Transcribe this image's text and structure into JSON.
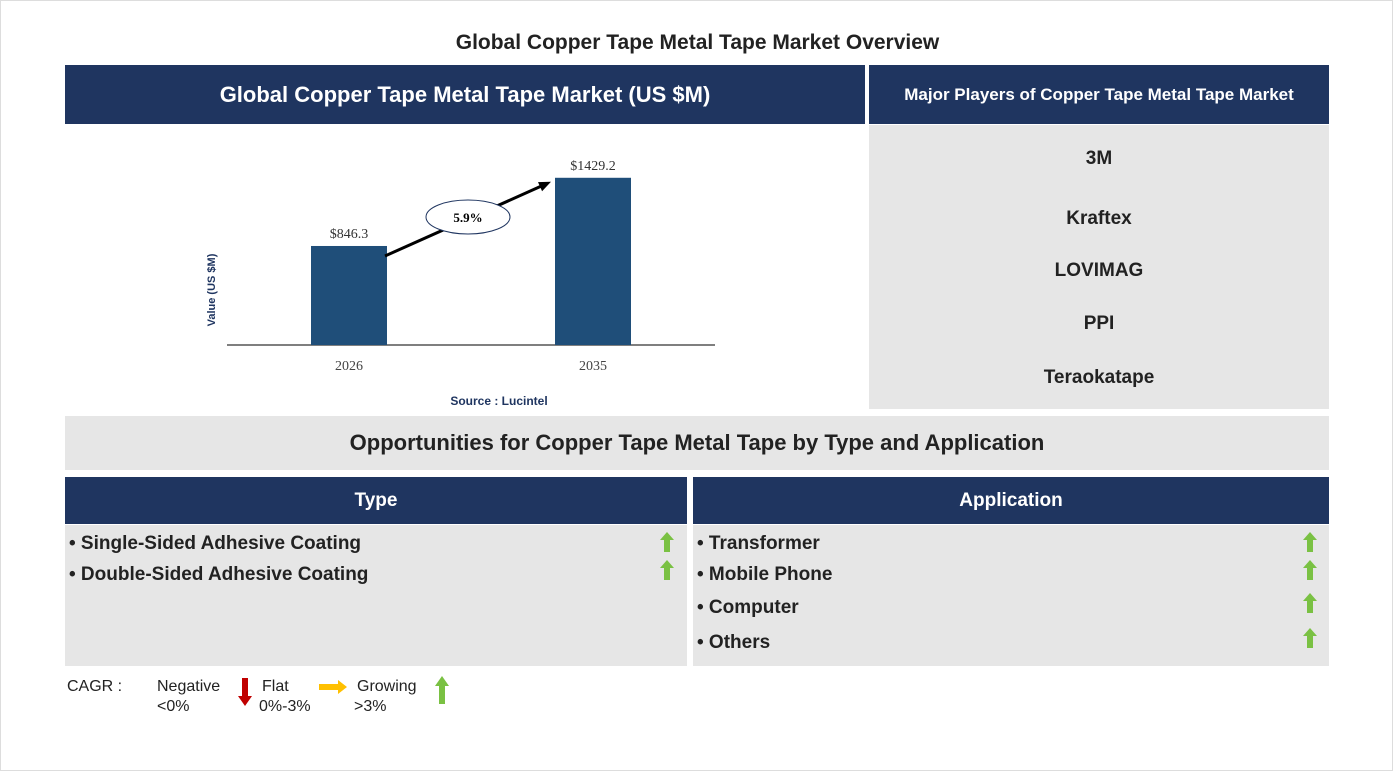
{
  "title": "Global Copper Tape Metal Tape Market Overview",
  "chart_panel": {
    "header": "Global Copper Tape Metal Tape Market (US $M)",
    "source": "Source : Lucintel"
  },
  "chart_data": {
    "type": "bar",
    "categories": [
      "2026",
      "2035"
    ],
    "values": [
      846.3,
      1429.2
    ],
    "data_labels": [
      "$846.3",
      "$1429.2"
    ],
    "ylabel": "Value (US $M)",
    "cagr_label": "5.9%",
    "bar_color": "#1f4e79"
  },
  "players": {
    "header": "Major Players of Copper Tape Metal Tape Market",
    "items": [
      "3M",
      "Kraftex",
      "LOVIMAG",
      "PPI",
      "Teraokatape"
    ]
  },
  "opportunities": {
    "header": "Opportunities for Copper Tape Metal Tape by Type and Application",
    "type": {
      "header": "Type",
      "items": [
        "• Single-Sided Adhesive Coating",
        "• Double-Sided Adhesive Coating"
      ],
      "trends": [
        "growing",
        "growing"
      ]
    },
    "application": {
      "header": "Application",
      "items": [
        "• Transformer",
        "• Mobile Phone",
        "• Computer",
        "• Others"
      ],
      "trends": [
        "growing",
        "growing",
        "growing",
        "growing"
      ]
    }
  },
  "legend": {
    "label": "CAGR :",
    "negative": "Negative",
    "negative_range": "<0%",
    "flat": "Flat",
    "flat_range": "0%-3%",
    "growing": "Growing",
    "growing_range": ">3%",
    "colors": {
      "negative": "#c00000",
      "flat": "#ffc000",
      "growing": "#7ac143"
    }
  }
}
